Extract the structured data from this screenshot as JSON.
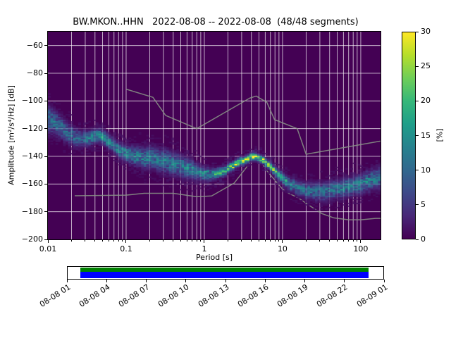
{
  "chart_data": {
    "type": "heatmap",
    "title": "BW.MKON..HHN   2022-08-08 -- 2022-08-08  (48/48 segments)",
    "xlabel": "Period [s]",
    "ylabel": "Amplitude [m²/s⁴/Hz] [dB]",
    "xscale": "log",
    "xlim": [
      0.01,
      179
    ],
    "ylim": [
      -200,
      -50
    ],
    "x_tick_values": [
      0.01,
      0.1,
      1,
      10,
      100
    ],
    "x_tick_labels": [
      "0.01",
      "0.1",
      "1",
      "10",
      "100"
    ],
    "y_tick_values": [
      -60,
      -80,
      -100,
      -120,
      -140,
      -160,
      -180,
      -200
    ],
    "y_tick_labels": [
      "−60",
      "−80",
      "−100",
      "−120",
      "−140",
      "−160",
      "−180",
      "−200"
    ],
    "background_color": "#440154",
    "grid_color": "#ffffff",
    "colorbar": {
      "label": "[%]",
      "lim": [
        0,
        30
      ],
      "tick_values": [
        0,
        5,
        10,
        15,
        20,
        25,
        30
      ],
      "tick_labels": [
        "0",
        "5",
        "10",
        "15",
        "20",
        "25",
        "30"
      ],
      "colormap_viridis": [
        "#440154",
        "#482878",
        "#3e4989",
        "#31688e",
        "#26828e",
        "#1f9e89",
        "#35b779",
        "#6ece58",
        "#b5de2b",
        "#fde725"
      ]
    },
    "noise_models": {
      "color": "#7f7f7f",
      "high_noise_model": [
        [
          0.1,
          -91.5
        ],
        [
          0.22,
          -97.4
        ],
        [
          0.32,
          -110.5
        ],
        [
          0.8,
          -120.0
        ],
        [
          3.8,
          -98.0
        ],
        [
          4.6,
          -96.5
        ],
        [
          6.3,
          -101.0
        ],
        [
          7.9,
          -113.5
        ],
        [
          15.4,
          -120.0
        ],
        [
          20.0,
          -138.5
        ],
        [
          179.0,
          -129.0
        ]
      ],
      "low_noise_model": [
        [
          0.022,
          -168.5
        ],
        [
          0.1,
          -168.0
        ],
        [
          0.17,
          -166.7
        ],
        [
          0.4,
          -166.7
        ],
        [
          0.8,
          -169.2
        ],
        [
          1.24,
          -168.6
        ],
        [
          2.4,
          -159.4
        ],
        [
          4.3,
          -141.1
        ],
        [
          5.0,
          -141.1
        ],
        [
          6.0,
          -149.0
        ],
        [
          10.0,
          -163.7
        ],
        [
          12.0,
          -166.7
        ],
        [
          15.6,
          -169.7
        ],
        [
          21.9,
          -175.4
        ],
        [
          31.6,
          -181.3
        ],
        [
          45.0,
          -184.4
        ],
        [
          70.0,
          -185.8
        ],
        [
          101.0,
          -185.8
        ],
        [
          154.0,
          -184.8
        ],
        [
          179.0,
          -184.8
        ]
      ]
    },
    "psd_anchor_format": [
      "period_s",
      "mode_dB",
      "spread_dB",
      "peak_percent"
    ],
    "psd_distribution_anchors": [
      [
        0.01,
        -112,
        6.0,
        11
      ],
      [
        0.013,
        -117,
        5.0,
        11
      ],
      [
        0.017,
        -122,
        4.5,
        11
      ],
      [
        0.022,
        -126,
        4.0,
        10
      ],
      [
        0.03,
        -127,
        3.5,
        11
      ],
      [
        0.04,
        -125,
        3.0,
        15
      ],
      [
        0.05,
        -126,
        3.0,
        16
      ],
      [
        0.065,
        -131,
        3.0,
        13
      ],
      [
        0.08,
        -135,
        3.2,
        13
      ],
      [
        0.1,
        -138,
        3.5,
        14
      ],
      [
        0.14,
        -140,
        4.0,
        13
      ],
      [
        0.2,
        -141,
        4.8,
        12
      ],
      [
        0.3,
        -143,
        5.0,
        12
      ],
      [
        0.45,
        -146,
        4.8,
        12
      ],
      [
        0.65,
        -149,
        4.2,
        13
      ],
      [
        0.9,
        -152,
        3.2,
        14
      ],
      [
        1.2,
        -153,
        2.6,
        16
      ],
      [
        1.6,
        -151.5,
        2.2,
        18
      ],
      [
        2.1,
        -148.5,
        1.9,
        22
      ],
      [
        2.8,
        -144.5,
        1.7,
        26
      ],
      [
        3.6,
        -141,
        1.5,
        30
      ],
      [
        4.5,
        -140,
        1.5,
        30
      ],
      [
        5.5,
        -142.5,
        1.6,
        27
      ],
      [
        6.5,
        -146,
        1.7,
        24
      ],
      [
        8.0,
        -151,
        2.0,
        20
      ],
      [
        10.0,
        -156,
        2.4,
        17
      ],
      [
        13.0,
        -160.5,
        2.8,
        14
      ],
      [
        17.0,
        -163.5,
        3.2,
        12
      ],
      [
        23.0,
        -165.5,
        3.6,
        11
      ],
      [
        32.0,
        -165.5,
        4.0,
        11
      ],
      [
        45.0,
        -164,
        4.0,
        12
      ],
      [
        65.0,
        -162.5,
        4.0,
        13
      ],
      [
        90.0,
        -160.5,
        4.0,
        13
      ],
      [
        125.0,
        -158,
        4.2,
        13
      ],
      [
        179.0,
        -155,
        4.6,
        11
      ]
    ],
    "timeline": {
      "labels": [
        "08-08 01",
        "08-08 04",
        "08-08 07",
        "08-08 10",
        "08-08 13",
        "08-08 16",
        "08-08 19",
        "08-08 22",
        "08-09 01"
      ],
      "data_color_top": "#008000",
      "data_color_bottom": "#0000ff",
      "coverage_start_frac": 0.04,
      "coverage_end_frac": 0.953
    }
  }
}
